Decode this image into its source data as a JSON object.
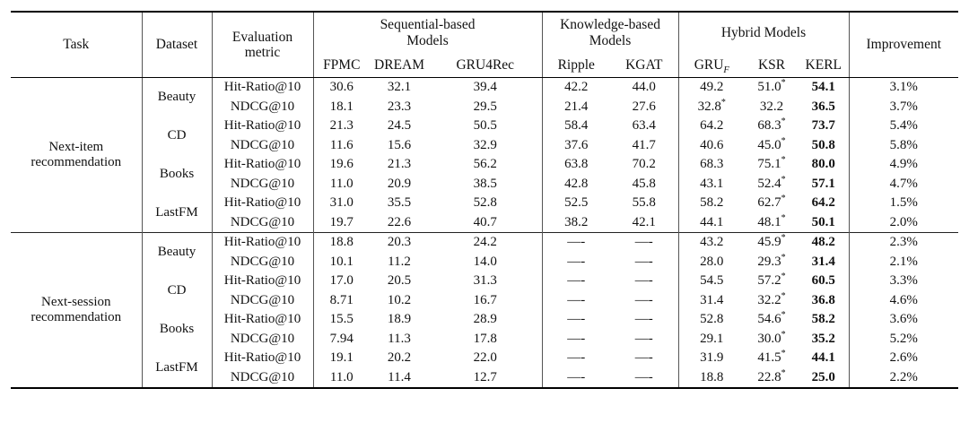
{
  "table": {
    "header": {
      "task": "Task",
      "dataset": "Dataset",
      "metric": "Evaluation metric",
      "groups": [
        {
          "label": "Sequential-based\nModels",
          "models": [
            "FPMC",
            "DREAM",
            "GRU4Rec"
          ]
        },
        {
          "label": "Knowledge-based\nModels",
          "models": [
            "Ripple",
            "KGAT"
          ]
        },
        {
          "label": "Hybrid Models",
          "models": [
            "GRU_F",
            "KSR",
            "KERL"
          ]
        }
      ],
      "improvement": "Improvement"
    },
    "sections": [
      {
        "task": "Next-item recommendation",
        "groups": [
          {
            "dataset": "Beauty",
            "rows": [
              {
                "metric": "Hit-Ratio@10",
                "values": [
                  "30.6",
                  "32.1",
                  "39.4",
                  "42.2",
                  "44.0",
                  "49.2",
                  "51.0*",
                  "54.1"
                ],
                "improvement": "3.1%"
              },
              {
                "metric": "NDCG@10",
                "values": [
                  "18.1",
                  "23.3",
                  "29.5",
                  "21.4",
                  "27.6",
                  "32.8*",
                  "32.2",
                  "36.5"
                ],
                "improvement": "3.7%"
              }
            ]
          },
          {
            "dataset": "CD",
            "rows": [
              {
                "metric": "Hit-Ratio@10",
                "values": [
                  "21.3",
                  "24.5",
                  "50.5",
                  "58.4",
                  "63.4",
                  "64.2",
                  "68.3*",
                  "73.7"
                ],
                "improvement": "5.4%"
              },
              {
                "metric": "NDCG@10",
                "values": [
                  "11.6",
                  "15.6",
                  "32.9",
                  "37.6",
                  "41.7",
                  "40.6",
                  "45.0*",
                  "50.8"
                ],
                "improvement": "5.8%"
              }
            ]
          },
          {
            "dataset": "Books",
            "rows": [
              {
                "metric": "Hit-Ratio@10",
                "values": [
                  "19.6",
                  "21.3",
                  "56.2",
                  "63.8",
                  "70.2",
                  "68.3",
                  "75.1*",
                  "80.0"
                ],
                "improvement": "4.9%"
              },
              {
                "metric": "NDCG@10",
                "values": [
                  "11.0",
                  "20.9",
                  "38.5",
                  "42.8",
                  "45.8",
                  "43.1",
                  "52.4*",
                  "57.1"
                ],
                "improvement": "4.7%"
              }
            ]
          },
          {
            "dataset": "LastFM",
            "rows": [
              {
                "metric": "Hit-Ratio@10",
                "values": [
                  "31.0",
                  "35.5",
                  "52.8",
                  "52.5",
                  "55.8",
                  "58.2",
                  "62.7*",
                  "64.2"
                ],
                "improvement": "1.5%"
              },
              {
                "metric": "NDCG@10",
                "values": [
                  "19.7",
                  "22.6",
                  "40.7",
                  "38.2",
                  "42.1",
                  "44.1",
                  "48.1*",
                  "50.1"
                ],
                "improvement": "2.0%"
              }
            ]
          }
        ]
      },
      {
        "task": "Next-session recommendation",
        "groups": [
          {
            "dataset": "Beauty",
            "rows": [
              {
                "metric": "Hit-Ratio@10",
                "values": [
                  "18.8",
                  "20.3",
                  "24.2",
                  "—-",
                  "—-",
                  "43.2",
                  "45.9*",
                  "48.2"
                ],
                "improvement": "2.3%"
              },
              {
                "metric": "NDCG@10",
                "values": [
                  "10.1",
                  "11.2",
                  "14.0",
                  "—-",
                  "—-",
                  "28.0",
                  "29.3*",
                  "31.4"
                ],
                "improvement": "2.1%"
              }
            ]
          },
          {
            "dataset": "CD",
            "rows": [
              {
                "metric": "Hit-Ratio@10",
                "values": [
                  "17.0",
                  "20.5",
                  "31.3",
                  "—-",
                  "—-",
                  "54.5",
                  "57.2*",
                  "60.5"
                ],
                "improvement": "3.3%"
              },
              {
                "metric": "NDCG@10",
                "values": [
                  "8.71",
                  "10.2",
                  "16.7",
                  "—-",
                  "—-",
                  "31.4",
                  "32.2*",
                  "36.8"
                ],
                "improvement": "4.6%"
              }
            ]
          },
          {
            "dataset": "Books",
            "rows": [
              {
                "metric": "Hit-Ratio@10",
                "values": [
                  "15.5",
                  "18.9",
                  "28.9",
                  "—-",
                  "—-",
                  "52.8",
                  "54.6*",
                  "58.2"
                ],
                "improvement": "3.6%"
              },
              {
                "metric": "NDCG@10",
                "values": [
                  "7.94",
                  "11.3",
                  "17.8",
                  "—-",
                  "—-",
                  "29.1",
                  "30.0*",
                  "35.2"
                ],
                "improvement": "5.2%"
              }
            ]
          },
          {
            "dataset": "LastFM",
            "rows": [
              {
                "metric": "Hit-Ratio@10",
                "values": [
                  "19.1",
                  "20.2",
                  "22.0",
                  "—-",
                  "—-",
                  "31.9",
                  "41.5*",
                  "44.1"
                ],
                "improvement": "2.6%"
              },
              {
                "metric": "NDCG@10",
                "values": [
                  "11.0",
                  "11.4",
                  "12.7",
                  "—-",
                  "—-",
                  "18.8",
                  "22.8*",
                  "25.0"
                ],
                "improvement": "2.2%"
              }
            ]
          }
        ]
      }
    ]
  }
}
